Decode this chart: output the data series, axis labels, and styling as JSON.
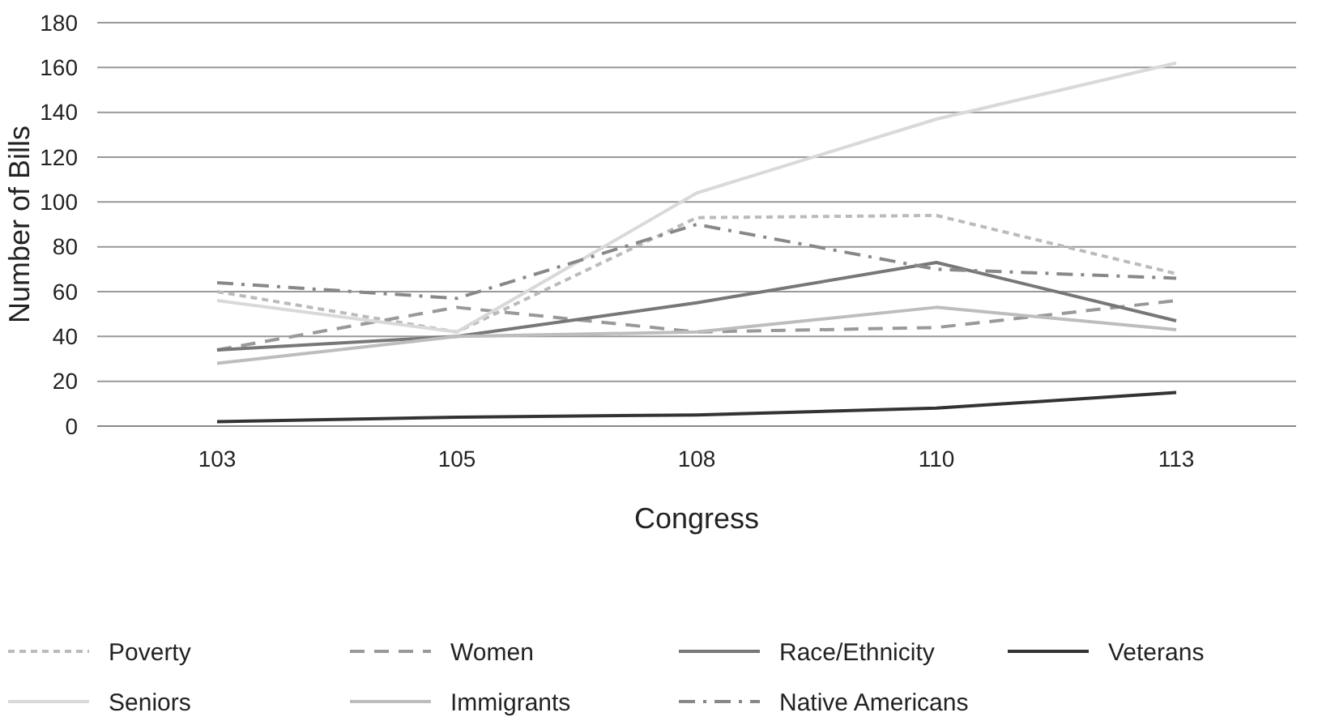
{
  "chart_data": {
    "type": "line",
    "xlabel": "Congress",
    "ylabel": "Number of Bills",
    "categories": [
      "103",
      "105",
      "108",
      "110",
      "113"
    ],
    "ylim": [
      0,
      180
    ],
    "yticks": [
      0,
      20,
      40,
      60,
      80,
      100,
      120,
      140,
      160,
      180
    ],
    "grid": "y",
    "legend": "bottom",
    "marker": "none",
    "series": [
      {
        "name": "Poverty",
        "color": "#bbbbbb",
        "line_style": "dotted",
        "values": [
          60,
          42,
          93,
          94,
          68
        ]
      },
      {
        "name": "Women",
        "color": "#999999",
        "line_style": "dashed",
        "values": [
          34,
          53,
          42,
          44,
          56
        ]
      },
      {
        "name": "Race/Ethnicity",
        "color": "#777777",
        "line_style": "solid",
        "values": [
          34,
          40,
          55,
          73,
          47
        ]
      },
      {
        "name": "Veterans",
        "color": "#333333",
        "line_style": "solid",
        "values": [
          2,
          4,
          5,
          8,
          15
        ]
      },
      {
        "name": "Seniors",
        "color": "#d9d9d9",
        "line_style": "solid",
        "values": [
          56,
          42,
          104,
          137,
          162
        ]
      },
      {
        "name": "Immigrants",
        "color": "#bdbdbd",
        "line_style": "solid",
        "values": [
          28,
          40,
          42,
          53,
          43
        ]
      },
      {
        "name": "Native Americans",
        "color": "#888888",
        "line_style": "dashdot",
        "values": [
          64,
          57,
          90,
          70,
          66
        ]
      }
    ]
  }
}
